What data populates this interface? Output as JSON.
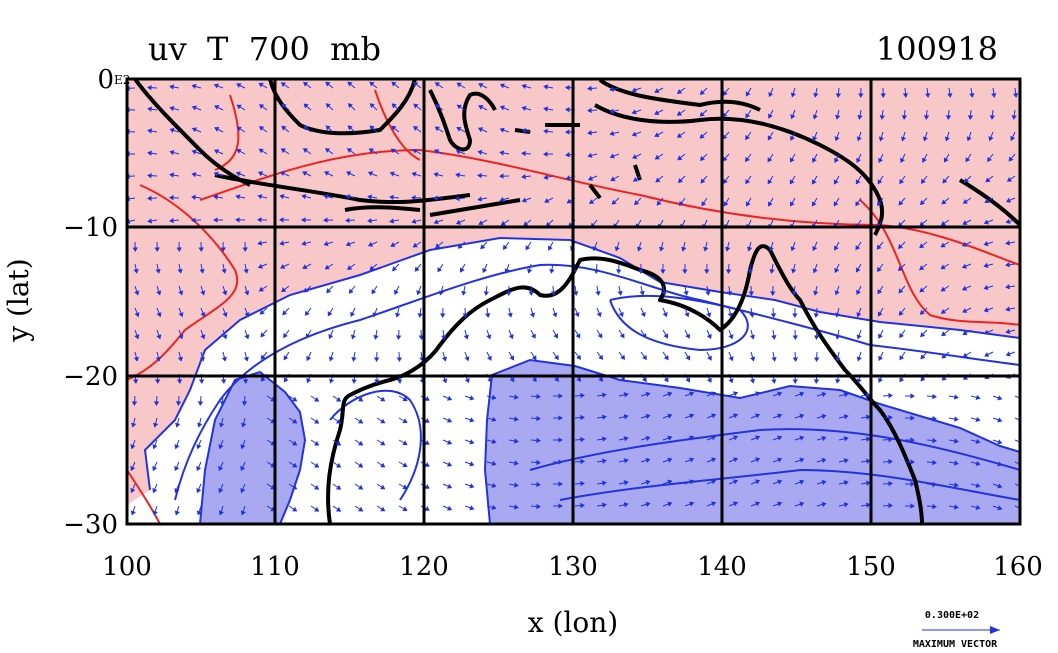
{
  "title_left": "uv  T  700  mb",
  "title_right": "100918",
  "axes": {
    "xlabel": "x (lon)",
    "ylabel": "y (lat)",
    "xlim": [
      100,
      160
    ],
    "ylim": [
      -30,
      0
    ],
    "xticks": [
      "100",
      "110",
      "120",
      "130",
      "140",
      "150",
      "160"
    ],
    "yticks": [
      "0",
      "−10",
      "−20",
      "−30"
    ],
    "corner_label": "E2"
  },
  "legend": {
    "vector_value": "0.300E+02",
    "vector_label": "MAXIMUM VECTOR"
  },
  "colors": {
    "warm_fill": "#f8c8c8",
    "cold_fill": "#a9a9f2",
    "warm_contour": "#ee2222",
    "cold_contour": "#2233dd",
    "coastline": "#000000",
    "vectors": "#2233dd"
  }
}
